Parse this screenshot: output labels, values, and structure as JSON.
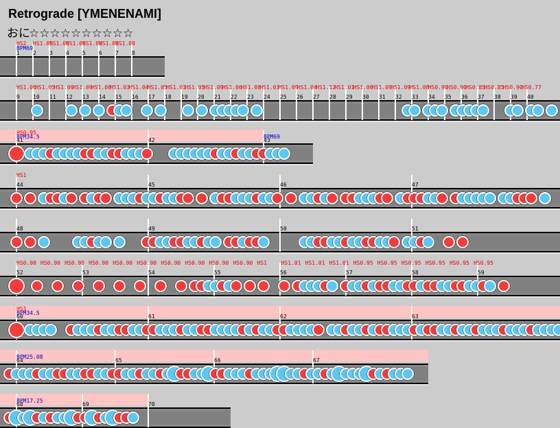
{
  "header": {
    "title": "Retrograde [YMENENAMI]",
    "difficulty": "おに",
    "stars": "☆☆☆☆☆☆☆☆☆☆"
  },
  "rows": [
    {
      "measures": [
        "1",
        "2",
        "3",
        "4",
        "5",
        "6",
        "7",
        "8"
      ],
      "hs": [
        "HS2",
        "HS1.05",
        "HS1.06",
        "HS1.05",
        "HS1.09",
        "HS1.09",
        "HS1.08"
      ],
      "bpm": [
        "BPM69"
      ]
    },
    {
      "measures": [
        "9",
        "10",
        "11",
        "12",
        "13",
        "14",
        "15",
        "16",
        "17",
        "18",
        "19",
        "20",
        "21",
        "22",
        "23",
        "24",
        "25",
        "26",
        "27",
        "28",
        "29",
        "30",
        "31",
        "32",
        "33",
        "34",
        "35",
        "36",
        "37",
        "38",
        "39",
        "40"
      ],
      "hs": [
        "HS1.06",
        "HS1.05",
        "HS1.09",
        "HS1.09",
        "HS1.08",
        "HS1.03",
        "HS1.04",
        "HS1.05",
        "HS1.01",
        "HS1.05",
        "HS1.09",
        "HS1.06",
        "HS1.08",
        "HS1.03",
        "HS1.09",
        "HS1.04",
        "HS1.12",
        "HS1.01",
        "HS1.06",
        "HS1.09",
        "HS1.09",
        "HS1.08",
        "HS0.90",
        "HS0.90",
        "HS0.85",
        "HS0.85",
        "HS0.90",
        "HS0.77"
      ],
      "bpm": []
    },
    {
      "measures": [
        "41",
        "42",
        "43"
      ],
      "hs": [
        "HS0.95"
      ],
      "bpm": [
        "BPM34.5",
        "BPM69"
      ]
    },
    {
      "measures": [
        "44",
        "45",
        "46",
        "47"
      ],
      "hs": [
        "HS1"
      ],
      "bpm": []
    },
    {
      "measures": [
        "48",
        "49",
        "50",
        "51"
      ],
      "hs": [],
      "bpm": []
    },
    {
      "measures": [
        "52",
        "53",
        "54",
        "55",
        "56",
        "57",
        "58",
        "59"
      ],
      "hs": [
        "HS0.90",
        "HS0.90",
        "HS0.90",
        "HS0.90",
        "HS0.90",
        "HS0.90",
        "HS0.90",
        "HS0.90",
        "HS0.90",
        "HS0.90",
        "HS1",
        "HS1.01",
        "HS1.01",
        "HS1.01",
        "HS0.95",
        "HS0.95",
        "HS0.95",
        "HS0.95",
        "HS0.95",
        "HS0.95"
      ],
      "bpm": []
    },
    {
      "measures": [
        "60",
        "61",
        "62",
        "63"
      ],
      "hs": [
        "HS1"
      ],
      "bpm": [
        "BPM34.5"
      ]
    },
    {
      "measures": [
        "64",
        "65",
        "66",
        "67"
      ],
      "hs": [],
      "bpm": [
        "BPM25.08"
      ]
    },
    {
      "measures": [
        "68",
        "69",
        "70"
      ],
      "hs": [],
      "bpm": [
        "BPM17.25"
      ]
    }
  ]
}
